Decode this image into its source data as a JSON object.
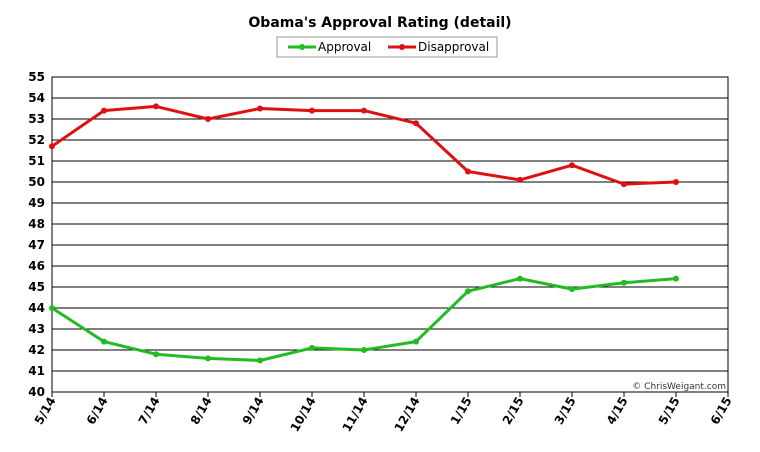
{
  "chart_data": {
    "type": "line",
    "title": "Obama's Approval Rating (detail)",
    "categories": [
      "5/14",
      "6/14",
      "7/14",
      "8/14",
      "9/14",
      "10/14",
      "11/14",
      "12/14",
      "1/15",
      "2/15",
      "3/15",
      "4/15",
      "5/15",
      "6/15"
    ],
    "series": [
      {
        "name": "Approval",
        "color": "#22bb22",
        "values": [
          44.0,
          42.4,
          41.8,
          41.6,
          41.5,
          42.1,
          42.0,
          42.4,
          44.8,
          45.4,
          44.9,
          45.2,
          45.4,
          null
        ]
      },
      {
        "name": "Disapproval",
        "color": "#dd1111",
        "values": [
          51.7,
          53.4,
          53.6,
          53.0,
          53.5,
          53.4,
          53.4,
          52.8,
          50.5,
          50.1,
          50.8,
          49.9,
          50.0,
          null
        ]
      }
    ],
    "ylim": [
      40,
      55
    ],
    "yticks": [
      40,
      41,
      42,
      43,
      44,
      45,
      46,
      47,
      48,
      49,
      50,
      51,
      52,
      53,
      54,
      55
    ],
    "xlabel": "",
    "ylabel": "",
    "grid": true,
    "legend": "top-center",
    "credit": "© ChrisWeigant.com"
  }
}
